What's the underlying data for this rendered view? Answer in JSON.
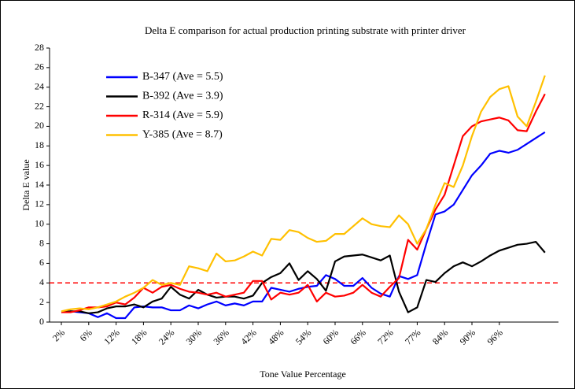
{
  "chart_data": {
    "type": "line",
    "title": "Delta E comparison for actual production printing substrate with printer driver",
    "x_label": "Tone Value Percentage",
    "y_label": "Delta E value",
    "categories": [
      "2%",
      null,
      null,
      "6%",
      null,
      null,
      "12%",
      null,
      null,
      "18%",
      null,
      null,
      "24%",
      null,
      null,
      "30%",
      null,
      null,
      "36%",
      null,
      null,
      "42%",
      null,
      null,
      "48%",
      null,
      null,
      "54%",
      null,
      null,
      "60%",
      null,
      null,
      "66%",
      null,
      null,
      "72%",
      null,
      null,
      "77%",
      null,
      null,
      "84%",
      null,
      null,
      "90%",
      null,
      null,
      "96%",
      null,
      null,
      null,
      null,
      null
    ],
    "ylim": [
      0,
      28
    ],
    "yticks": [
      0,
      2,
      4,
      6,
      8,
      10,
      12,
      14,
      16,
      18,
      20,
      22,
      24,
      26,
      28
    ],
    "legend": "upper left",
    "reference_line": {
      "value": 4,
      "color": "#ff0000"
    },
    "series": [
      {
        "name": "B-347 (Ave = 5.5)",
        "color": "#0000ff",
        "values": [
          1.0,
          1.1,
          1.0,
          0.9,
          0.5,
          0.9,
          0.4,
          0.4,
          1.5,
          1.6,
          1.5,
          1.5,
          1.2,
          1.2,
          1.7,
          1.4,
          1.8,
          2.1,
          1.7,
          1.9,
          1.7,
          2.1,
          2.1,
          3.5,
          3.3,
          3.1,
          3.4,
          3.6,
          3.7,
          4.8,
          4.4,
          3.7,
          3.7,
          4.5,
          3.5,
          2.9,
          2.6,
          4.7,
          4.4,
          4.8,
          8.0,
          11.0,
          11.3,
          12.0,
          13.5,
          15.0,
          16.0,
          17.2,
          17.5,
          17.3,
          17.6,
          18.2,
          18.8,
          19.4
        ]
      },
      {
        "name": "B-392 (Ave = 3.9)",
        "color": "#000000",
        "values": [
          1.0,
          1.1,
          1.1,
          0.9,
          1.0,
          1.4,
          1.6,
          1.6,
          1.8,
          1.5,
          2.1,
          2.4,
          3.6,
          2.8,
          2.4,
          3.3,
          2.8,
          2.5,
          2.6,
          2.6,
          2.4,
          2.7,
          4.0,
          4.6,
          5.0,
          6.0,
          4.3,
          5.2,
          4.4,
          3.2,
          6.2,
          6.7,
          6.8,
          6.9,
          6.6,
          6.3,
          6.8,
          3.1,
          1.0,
          1.5,
          4.3,
          4.1,
          5.0,
          5.7,
          6.1,
          5.7,
          6.2,
          6.8,
          7.3,
          7.6,
          7.9,
          8.0,
          8.2,
          7.1
        ]
      },
      {
        "name": "R-314 (Ave = 5.9)",
        "color": "#ff0000",
        "values": [
          1.0,
          1.0,
          1.2,
          1.5,
          1.5,
          1.6,
          2.0,
          1.8,
          2.5,
          3.5,
          3.0,
          3.6,
          3.8,
          3.4,
          3.1,
          3.0,
          2.8,
          3.0,
          2.6,
          2.8,
          3.0,
          4.2,
          4.2,
          2.3,
          3.0,
          2.8,
          3.0,
          3.8,
          2.1,
          3.0,
          2.6,
          2.7,
          3.0,
          3.8,
          3.0,
          2.6,
          3.6,
          4.5,
          8.4,
          7.4,
          9.5,
          11.5,
          13.0,
          16.0,
          19.0,
          20.0,
          20.5,
          20.7,
          20.9,
          20.6,
          19.6,
          19.5,
          21.5,
          23.3
        ]
      },
      {
        "name": "Y-385 (Ave = 8.7)",
        "color": "#ffc000",
        "values": [
          1.1,
          1.3,
          1.4,
          1.3,
          1.5,
          1.8,
          2.1,
          2.6,
          3.0,
          3.5,
          4.3,
          3.8,
          4.0,
          3.8,
          5.7,
          5.5,
          5.2,
          7.0,
          6.2,
          6.3,
          6.7,
          7.2,
          6.8,
          8.5,
          8.4,
          9.4,
          9.2,
          8.6,
          8.2,
          8.3,
          9.0,
          9.0,
          9.8,
          10.6,
          10.0,
          9.8,
          9.7,
          10.9,
          10.0,
          8.0,
          9.5,
          12.0,
          14.2,
          13.8,
          16.0,
          19.0,
          21.5,
          23.0,
          23.8,
          24.1,
          21.0,
          20.0,
          22.5,
          25.2
        ]
      }
    ]
  }
}
